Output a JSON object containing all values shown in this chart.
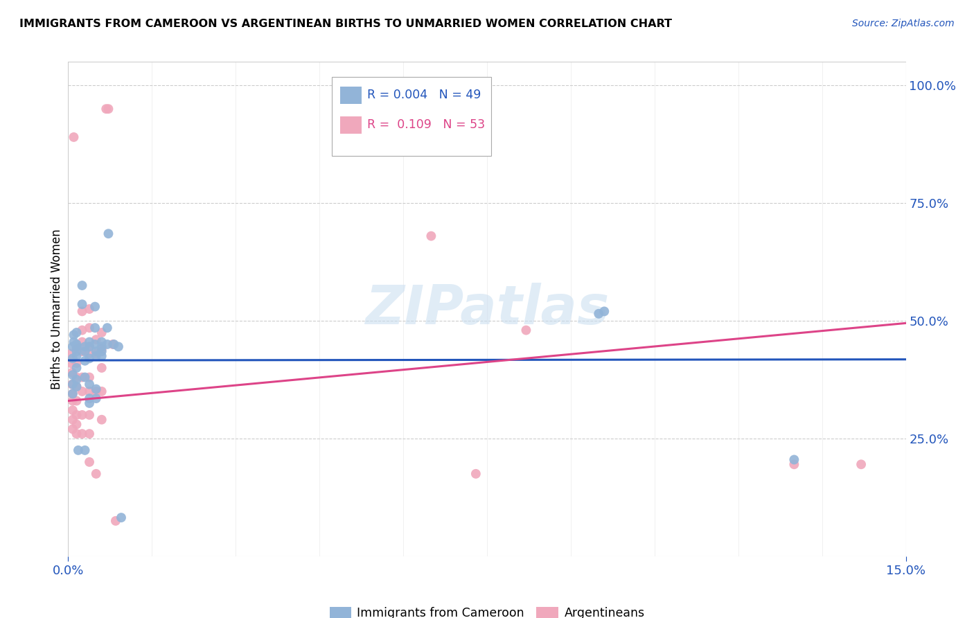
{
  "title": "IMMIGRANTS FROM CAMEROON VS ARGENTINEAN BIRTHS TO UNMARRIED WOMEN CORRELATION CHART",
  "source": "Source: ZipAtlas.com",
  "ylabel": "Births to Unmarried Women",
  "xlim": [
    0.0,
    0.15
  ],
  "ylim": [
    0.0,
    1.05
  ],
  "xtick_positions": [
    0.0,
    0.15
  ],
  "xtick_labels": [
    "0.0%",
    "15.0%"
  ],
  "ytick_positions": [
    0.25,
    0.5,
    0.75,
    1.0
  ],
  "ytick_labels_right": [
    "25.0%",
    "50.0%",
    "75.0%",
    "100.0%"
  ],
  "legend_line1": "R = 0.004   N = 49",
  "legend_line2": "R =  0.109   N = 53",
  "watermark": "ZIPatlas",
  "blue_color": "#92b4d8",
  "pink_color": "#f0a8bc",
  "blue_line_color": "#2255bb",
  "pink_line_color": "#dd4488",
  "blue_scatter": [
    [
      0.0008,
      0.445
    ],
    [
      0.0008,
      0.42
    ],
    [
      0.0008,
      0.385
    ],
    [
      0.0008,
      0.365
    ],
    [
      0.0008,
      0.345
    ],
    [
      0.001,
      0.47
    ],
    [
      0.001,
      0.455
    ],
    [
      0.0015,
      0.45
    ],
    [
      0.0015,
      0.435
    ],
    [
      0.0015,
      0.425
    ],
    [
      0.0015,
      0.4
    ],
    [
      0.0015,
      0.375
    ],
    [
      0.0015,
      0.36
    ],
    [
      0.0015,
      0.475
    ],
    [
      0.0015,
      0.445
    ],
    [
      0.0018,
      0.225
    ],
    [
      0.0025,
      0.575
    ],
    [
      0.0025,
      0.535
    ],
    [
      0.003,
      0.445
    ],
    [
      0.003,
      0.435
    ],
    [
      0.003,
      0.415
    ],
    [
      0.003,
      0.38
    ],
    [
      0.003,
      0.225
    ],
    [
      0.0038,
      0.455
    ],
    [
      0.0038,
      0.445
    ],
    [
      0.0038,
      0.42
    ],
    [
      0.0038,
      0.365
    ],
    [
      0.0038,
      0.335
    ],
    [
      0.0038,
      0.325
    ],
    [
      0.0048,
      0.53
    ],
    [
      0.0048,
      0.485
    ],
    [
      0.0048,
      0.45
    ],
    [
      0.005,
      0.435
    ],
    [
      0.005,
      0.425
    ],
    [
      0.005,
      0.355
    ],
    [
      0.005,
      0.335
    ],
    [
      0.006,
      0.455
    ],
    [
      0.006,
      0.445
    ],
    [
      0.006,
      0.435
    ],
    [
      0.006,
      0.425
    ],
    [
      0.007,
      0.485
    ],
    [
      0.007,
      0.45
    ],
    [
      0.0072,
      0.685
    ],
    [
      0.0082,
      0.45
    ],
    [
      0.009,
      0.445
    ],
    [
      0.0095,
      0.082
    ],
    [
      0.095,
      0.515
    ],
    [
      0.096,
      0.52
    ],
    [
      0.13,
      0.205
    ]
  ],
  "pink_scatter": [
    [
      0.0005,
      0.43
    ],
    [
      0.0005,
      0.41
    ],
    [
      0.0007,
      0.39
    ],
    [
      0.0007,
      0.365
    ],
    [
      0.0008,
      0.345
    ],
    [
      0.0008,
      0.33
    ],
    [
      0.0008,
      0.31
    ],
    [
      0.0008,
      0.29
    ],
    [
      0.0008,
      0.27
    ],
    [
      0.001,
      0.89
    ],
    [
      0.0015,
      0.44
    ],
    [
      0.0015,
      0.41
    ],
    [
      0.0015,
      0.38
    ],
    [
      0.0015,
      0.36
    ],
    [
      0.0015,
      0.33
    ],
    [
      0.0015,
      0.3
    ],
    [
      0.0015,
      0.28
    ],
    [
      0.0015,
      0.26
    ],
    [
      0.0025,
      0.52
    ],
    [
      0.0025,
      0.48
    ],
    [
      0.0025,
      0.455
    ],
    [
      0.0025,
      0.435
    ],
    [
      0.0025,
      0.38
    ],
    [
      0.0025,
      0.35
    ],
    [
      0.0025,
      0.3
    ],
    [
      0.0025,
      0.26
    ],
    [
      0.0038,
      0.525
    ],
    [
      0.0038,
      0.485
    ],
    [
      0.0038,
      0.445
    ],
    [
      0.0038,
      0.43
    ],
    [
      0.0038,
      0.38
    ],
    [
      0.0038,
      0.35
    ],
    [
      0.0038,
      0.3
    ],
    [
      0.0038,
      0.26
    ],
    [
      0.0038,
      0.2
    ],
    [
      0.005,
      0.46
    ],
    [
      0.005,
      0.43
    ],
    [
      0.005,
      0.35
    ],
    [
      0.005,
      0.175
    ],
    [
      0.006,
      0.475
    ],
    [
      0.006,
      0.44
    ],
    [
      0.006,
      0.4
    ],
    [
      0.006,
      0.35
    ],
    [
      0.006,
      0.29
    ],
    [
      0.0068,
      0.95
    ],
    [
      0.0072,
      0.95
    ],
    [
      0.008,
      0.45
    ],
    [
      0.0085,
      0.075
    ],
    [
      0.065,
      0.68
    ],
    [
      0.073,
      0.175
    ],
    [
      0.082,
      0.48
    ],
    [
      0.13,
      0.195
    ],
    [
      0.142,
      0.195
    ]
  ],
  "blue_trendline": [
    [
      0.0,
      0.416
    ],
    [
      0.15,
      0.418
    ]
  ],
  "pink_trendline": [
    [
      0.0,
      0.33
    ],
    [
      0.15,
      0.495
    ]
  ]
}
